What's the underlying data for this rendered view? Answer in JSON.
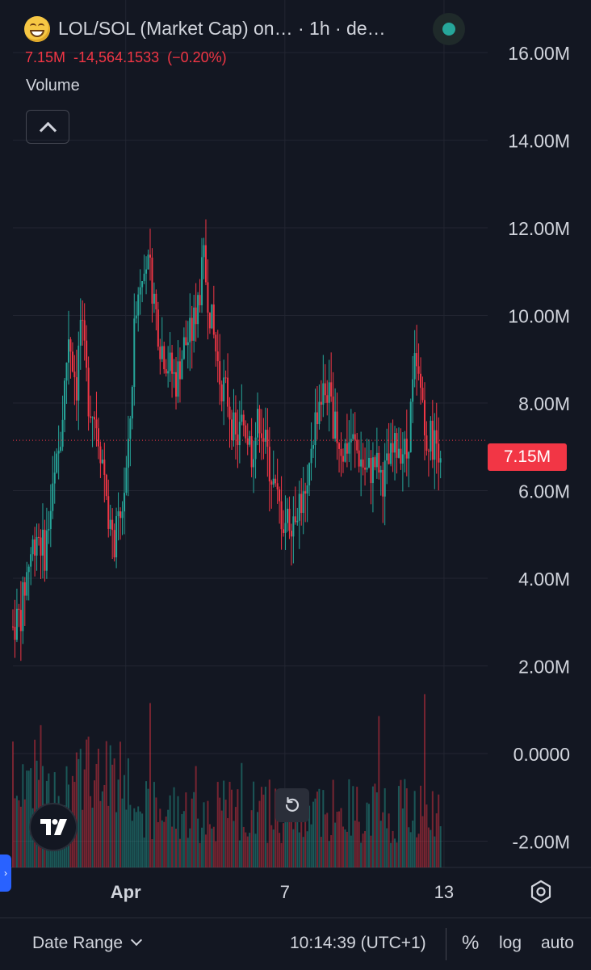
{
  "header": {
    "symbol_title": "LOL/SOL (Market Cap) on…  · 1h · de…",
    "last_value": "7.15M",
    "change": "-14,564.1533",
    "change_pct": "(−0.20%)",
    "volume_label": "Volume",
    "icon": "grinning-face-emoji"
  },
  "chart_data": {
    "type": "candlestick",
    "interval": "1h",
    "y_ticks": [
      "16.00M",
      "14.00M",
      "12.00M",
      "10.00M",
      "8.00M",
      "6.00M",
      "4.00M",
      "2.00M",
      "0.0000",
      "-2.00M"
    ],
    "x_ticks": [
      "Apr",
      "7",
      "13"
    ],
    "last_price_label": "7.15M",
    "last_price": 7.15,
    "ylim": [
      -2.6,
      17.2
    ],
    "price_path": [
      [
        0,
        2.9
      ],
      [
        2,
        3.2
      ],
      [
        4,
        4.4
      ],
      [
        6,
        5.1
      ],
      [
        8,
        4.6
      ],
      [
        10,
        5.9
      ],
      [
        12,
        7.2
      ],
      [
        14,
        9.6
      ],
      [
        16,
        8.4
      ],
      [
        17,
        9.9
      ],
      [
        19,
        8.1
      ],
      [
        21,
        7.6
      ],
      [
        23,
        6.4
      ],
      [
        25,
        4.7
      ],
      [
        27,
        5.3
      ],
      [
        29,
        6.8
      ],
      [
        31,
        10.4
      ],
      [
        33,
        11.4
      ],
      [
        35,
        10.7
      ],
      [
        37,
        9.4
      ],
      [
        39,
        8.9
      ],
      [
        41,
        8.5
      ],
      [
        43,
        9.3
      ],
      [
        45,
        9.6
      ],
      [
        47,
        10.6
      ],
      [
        48,
        11.2
      ],
      [
        50,
        9.8
      ],
      [
        52,
        8.6
      ],
      [
        54,
        8.1
      ],
      [
        56,
        7.1
      ],
      [
        58,
        7.6
      ],
      [
        60,
        6.9
      ],
      [
        62,
        7.7
      ],
      [
        64,
        6.8
      ],
      [
        66,
        5.9
      ],
      [
        68,
        5.3
      ],
      [
        70,
        5.4
      ],
      [
        72,
        5.8
      ],
      [
        74,
        5.7
      ],
      [
        75,
        7.1
      ],
      [
        77,
        8.1
      ],
      [
        79,
        8.3
      ],
      [
        81,
        7.4
      ],
      [
        83,
        6.9
      ],
      [
        85,
        7.2
      ],
      [
        87,
        6.8
      ],
      [
        89,
        6.4
      ],
      [
        91,
        6.6
      ],
      [
        93,
        6.3
      ],
      [
        95,
        6.7
      ],
      [
        97,
        7.1
      ],
      [
        99,
        6.8
      ],
      [
        101,
        8.8
      ],
      [
        103,
        8.1
      ],
      [
        104,
        7.3
      ],
      [
        106,
        7.1
      ],
      [
        108,
        7.05
      ]
    ],
    "x_total": 110,
    "x_tick_positions": [
      31,
      71,
      111
    ]
  },
  "footer": {
    "date_range_label": "Date Range",
    "clock": "10:14:39 (UTC+1)",
    "percent_label": "%",
    "log_label": "log",
    "auto_label": "auto"
  },
  "colors": {
    "up": "#26a69a",
    "down": "#f23645",
    "background": "#131722",
    "grid": "#232632",
    "text": "#d1d4dc",
    "accent": "#2962ff"
  }
}
